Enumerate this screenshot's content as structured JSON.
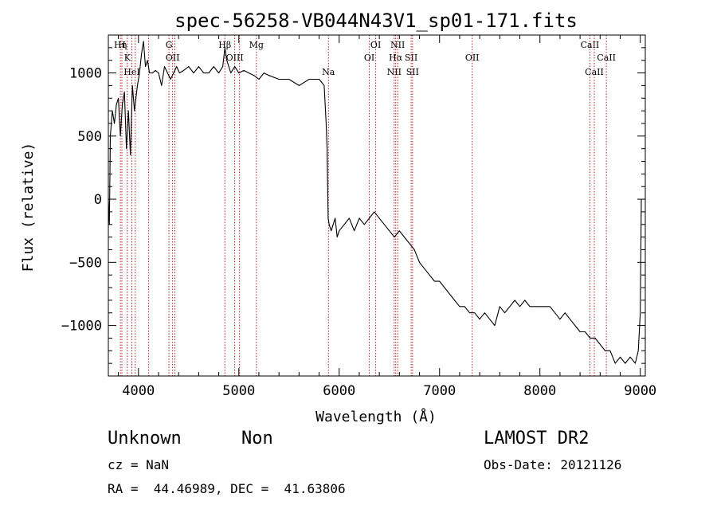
{
  "chart_data": {
    "type": "line",
    "title": "spec-56258-VB044N43V1_sp01-171.fits",
    "xlabel": "Wavelength (Å)",
    "ylabel": "Flux (relative)",
    "xlim": [
      3700,
      9050
    ],
    "ylim": [
      -1400,
      1300
    ],
    "xticks": [
      4000,
      5000,
      6000,
      7000,
      8000,
      9000
    ],
    "xtick_labels": [
      "4000",
      "5000",
      "6000",
      "7000",
      "8000",
      "9000"
    ],
    "yticks": [
      -1000,
      -500,
      0,
      500,
      1000
    ],
    "ytick_labels": [
      "−1000",
      "−500",
      "0",
      "500",
      "1000"
    ],
    "grid": false,
    "line_color": "#000000",
    "marker_color": "#b22222",
    "series": [
      {
        "x": [
          3700,
          3710,
          3720,
          3740,
          3760,
          3780,
          3800,
          3820,
          3840,
          3860,
          3880,
          3900,
          3920,
          3940,
          3960,
          3975,
          3990,
          4010,
          4030,
          4050,
          4070,
          4090,
          4110,
          4140,
          4170,
          4200,
          4230,
          4260,
          4290,
          4320,
          4350,
          4380,
          4410,
          4450,
          4500,
          4550,
          4600,
          4650,
          4700,
          4750,
          4800,
          4840,
          4861,
          4880,
          4920,
          4960,
          5000,
          5050,
          5100,
          5150,
          5200,
          5250,
          5300,
          5400,
          5500,
          5600,
          5700,
          5800,
          5850,
          5870,
          5880,
          5890,
          5900,
          5920,
          5940,
          5960,
          5980,
          6000,
          6050,
          6100,
          6150,
          6200,
          6250,
          6300,
          6350,
          6400,
          6450,
          6500,
          6550,
          6600,
          6650,
          6700,
          6750,
          6800,
          6850,
          6900,
          6950,
          7000,
          7050,
          7100,
          7150,
          7200,
          7250,
          7300,
          7350,
          7400,
          7450,
          7500,
          7550,
          7600,
          7650,
          7700,
          7750,
          7800,
          7850,
          7900,
          7950,
          8000,
          8050,
          8100,
          8150,
          8200,
          8250,
          8300,
          8350,
          8400,
          8450,
          8500,
          8550,
          8600,
          8650,
          8700,
          8750,
          8800,
          8850,
          8900,
          8950,
          8980,
          9000,
          9010
        ],
        "y": [
          0,
          -200,
          500,
          700,
          600,
          750,
          800,
          500,
          750,
          850,
          400,
          700,
          350,
          900,
          700,
          800,
          900,
          1000,
          1150,
          1250,
          1050,
          1100,
          1000,
          1000,
          1020,
          1000,
          900,
          1050,
          1000,
          950,
          1000,
          1050,
          1000,
          1020,
          1050,
          1000,
          1050,
          1000,
          1000,
          1050,
          1000,
          1050,
          1200,
          1100,
          1000,
          1050,
          1000,
          1020,
          1000,
          980,
          950,
          1000,
          980,
          950,
          950,
          900,
          950,
          950,
          900,
          600,
          400,
          -150,
          -200,
          -250,
          -200,
          -150,
          -300,
          -250,
          -200,
          -150,
          -250,
          -150,
          -200,
          -150,
          -100,
          -150,
          -200,
          -250,
          -300,
          -250,
          -300,
          -350,
          -400,
          -500,
          -550,
          -600,
          -650,
          -650,
          -700,
          -750,
          -800,
          -850,
          -850,
          -900,
          -900,
          -950,
          -900,
          -950,
          -1000,
          -850,
          -900,
          -850,
          -800,
          -850,
          -800,
          -850,
          -850,
          -850,
          -850,
          -850,
          -900,
          -950,
          -900,
          -950,
          -1000,
          -1050,
          -1050,
          -1100,
          -1100,
          -1150,
          -1200,
          -1200,
          -1300,
          -1250,
          -1300,
          -1250,
          -1300,
          -1200,
          -900,
          0
        ]
      }
    ],
    "line_markers": [
      {
        "x": 3820,
        "label": "Hη",
        "tier": 0
      },
      {
        "x": 3835,
        "label": "H",
        "tier": 0
      },
      {
        "x": 3889,
        "label": "K",
        "tier": 1
      },
      {
        "x": 3934,
        "label": "HeI",
        "tier": 2
      },
      {
        "x": 3968,
        "label": "",
        "tier": 0
      },
      {
        "x": 4102,
        "label": "",
        "tier": 0
      },
      {
        "x": 4304,
        "label": "G",
        "tier": 0
      },
      {
        "x": 4340,
        "label": "OII",
        "tier": 1
      },
      {
        "x": 4363,
        "label": "",
        "tier": 2
      },
      {
        "x": 4861,
        "label": "Hβ",
        "tier": 0
      },
      {
        "x": 4959,
        "label": "OIII",
        "tier": 1
      },
      {
        "x": 5007,
        "label": "",
        "tier": 0
      },
      {
        "x": 5175,
        "label": "Mg",
        "tier": 0
      },
      {
        "x": 5893,
        "label": "Na",
        "tier": 2
      },
      {
        "x": 6300,
        "label": "OI",
        "tier": 1
      },
      {
        "x": 6364,
        "label": "OI",
        "tier": 0
      },
      {
        "x": 6548,
        "label": "NII",
        "tier": 2
      },
      {
        "x": 6563,
        "label": "Hα",
        "tier": 1
      },
      {
        "x": 6583,
        "label": "NII",
        "tier": 0
      },
      {
        "x": 6717,
        "label": "SII",
        "tier": 1
      },
      {
        "x": 6731,
        "label": "SII",
        "tier": 2
      },
      {
        "x": 7325,
        "label": "OII",
        "tier": 1
      },
      {
        "x": 8498,
        "label": "CaII",
        "tier": 0
      },
      {
        "x": 8542,
        "label": "CaII",
        "tier": 2
      },
      {
        "x": 8662,
        "label": "CaII",
        "tier": 1
      }
    ]
  },
  "info": {
    "class_label": "Unknown",
    "subclass_label": "Non",
    "survey_label": "LAMOST DR2",
    "cz_text": "cz = NaN",
    "obs_date_text": "Obs-Date: 20121126",
    "radec_text": "RA =  44.46989, DEC =  41.63806"
  }
}
